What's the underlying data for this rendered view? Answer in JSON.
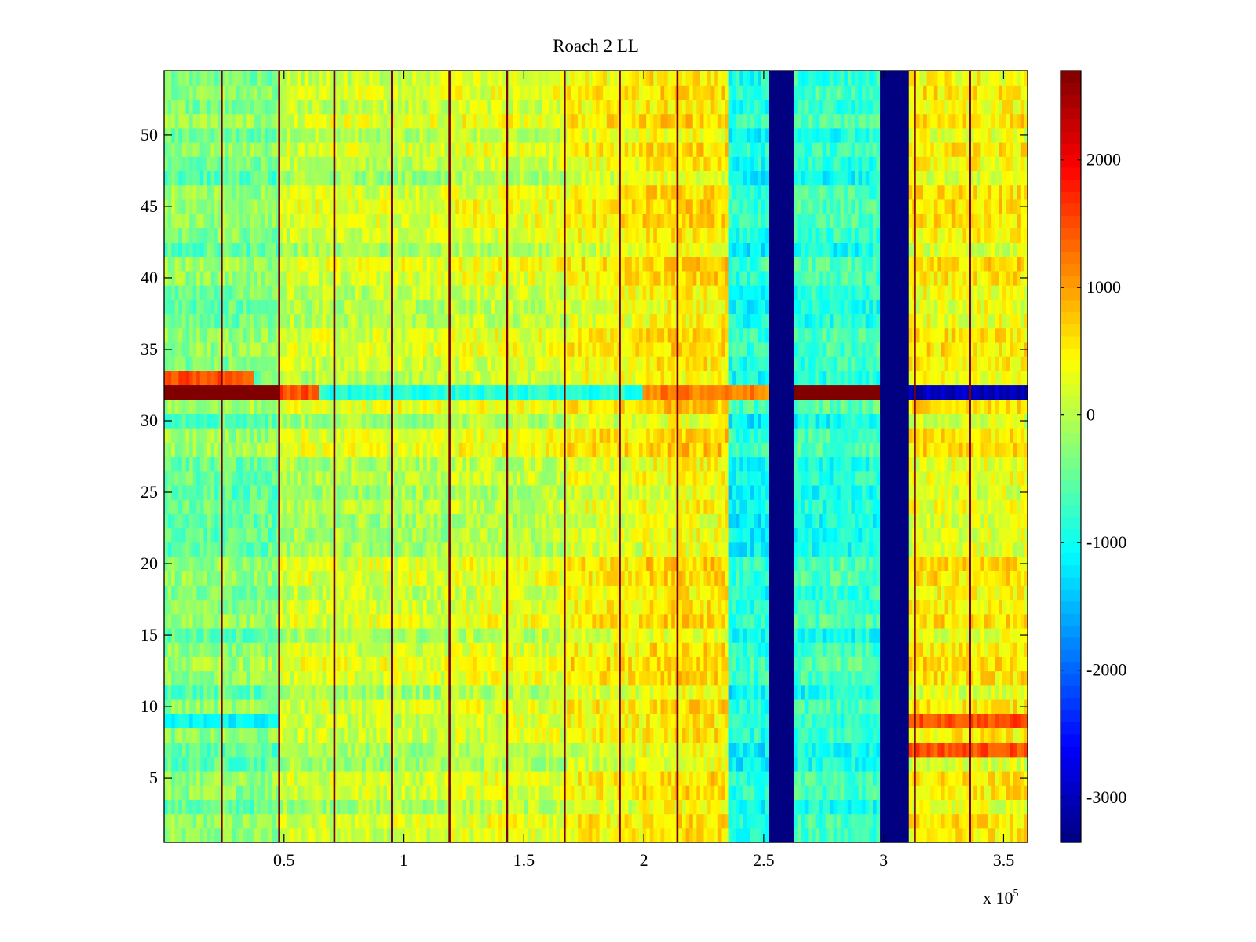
{
  "chart_data": {
    "type": "heatmap",
    "title": "Roach 2 LL",
    "xlabel": "",
    "ylabel": "",
    "x_exponent_label": "x 10",
    "x_exponent": "5",
    "xlim": [
      0,
      3.6
    ],
    "ylim": [
      0.5,
      54.5
    ],
    "x_ticks": [
      0.5,
      1,
      1.5,
      2,
      2.5,
      3,
      3.5
    ],
    "x_tick_labels": [
      "0.5",
      "1",
      "1.5",
      "2",
      "2.5",
      "3",
      "3.5"
    ],
    "y_ticks": [
      5,
      10,
      15,
      20,
      25,
      30,
      35,
      40,
      45,
      50
    ],
    "y_tick_labels": [
      "5",
      "10",
      "15",
      "20",
      "25",
      "30",
      "35",
      "40",
      "45",
      "50"
    ],
    "n_rows": 54,
    "colormap": "jet",
    "clim": [
      -3350,
      2700
    ],
    "colorbar_ticks": [
      2000,
      1000,
      0,
      -1000,
      -2000,
      -3000
    ],
    "colorbar_tick_labels": [
      "2000",
      "1000",
      "0",
      "-1000",
      "-2000",
      "-3000"
    ],
    "column_bands": [
      {
        "x_start": 0.0,
        "x_end": 0.48,
        "value": -350
      },
      {
        "x_start": 0.48,
        "x_end": 1.2,
        "value": 60
      },
      {
        "x_start": 1.2,
        "x_end": 1.68,
        "value": 160
      },
      {
        "x_start": 1.68,
        "x_end": 2.0,
        "value": 380
      },
      {
        "x_start": 2.0,
        "x_end": 2.36,
        "value": 520
      },
      {
        "x_start": 2.36,
        "x_end": 2.52,
        "value": -950
      },
      {
        "x_start": 2.52,
        "x_end": 2.63,
        "value": -3350
      },
      {
        "x_start": 2.63,
        "x_end": 2.99,
        "value": -800
      },
      {
        "x_start": 2.99,
        "x_end": 3.11,
        "value": -3350
      },
      {
        "x_start": 3.11,
        "x_end": 3.6,
        "value": 420
      }
    ],
    "vertical_stripes_x": [
      0.24,
      0.48,
      0.71,
      0.95,
      1.19,
      1.43,
      1.67,
      1.9,
      2.14,
      3.13,
      3.36
    ],
    "vertical_stripe_value": 2700,
    "row_anomalies": [
      {
        "row": 32,
        "x_start": 0.0,
        "x_end": 0.48,
        "value": 2700
      },
      {
        "row": 32,
        "x_start": 0.48,
        "x_end": 0.65,
        "value": 1500
      },
      {
        "row": 32,
        "x_start": 0.65,
        "x_end": 2.0,
        "value": -900
      },
      {
        "row": 32,
        "x_start": 2.0,
        "x_end": 2.52,
        "value": 1200
      },
      {
        "row": 32,
        "x_start": 2.63,
        "x_end": 2.99,
        "value": 2700
      },
      {
        "row": 32,
        "x_start": 3.11,
        "x_end": 3.6,
        "value": -3000
      },
      {
        "row": 33,
        "x_start": 0.0,
        "x_end": 0.38,
        "value": 1500
      },
      {
        "row": 9,
        "x_start": 0.0,
        "x_end": 0.48,
        "value": -1100
      },
      {
        "row": 9,
        "x_start": 3.11,
        "x_end": 3.6,
        "value": 1500
      },
      {
        "row": 7,
        "x_start": 3.11,
        "x_end": 3.6,
        "value": 1500
      }
    ]
  },
  "colors": {
    "background": "#ffffff",
    "axis": "#000000"
  }
}
